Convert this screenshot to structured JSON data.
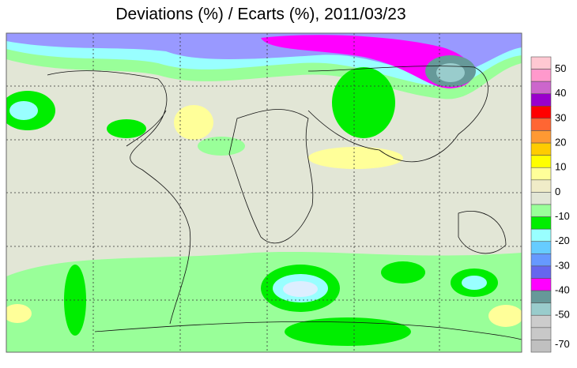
{
  "title": "Deviations (%) / Ecarts (%), 2011/03/23",
  "colorbar": {
    "labels": [
      50,
      40,
      30,
      20,
      10,
      0,
      -10,
      -20,
      -30,
      -40,
      -50,
      -70
    ],
    "colors": [
      "#ffc8d2",
      "#ff99cc",
      "#cc66cc",
      "#9900cc",
      "#ff0000",
      "#ff6633",
      "#ff9933",
      "#ffcc00",
      "#ffff00",
      "#ffff99",
      "#f0ecc8",
      "#e2e6d6",
      "#99ff99",
      "#00ee00",
      "#99ffff",
      "#66ccff",
      "#6699ff",
      "#6666ee",
      "#ff00ff",
      "#669999",
      "#99cccc",
      "#cccccc",
      "#c8c8c8",
      "#c0c0c0"
    ]
  }
}
